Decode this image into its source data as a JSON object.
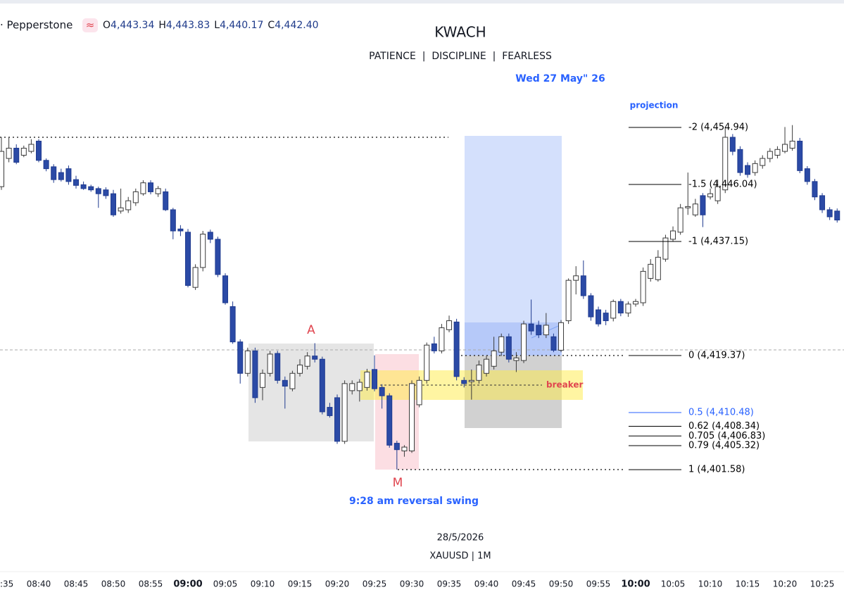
{
  "header": {
    "symbol": "· Pepperstone",
    "badge": "≈",
    "ohlc": [
      {
        "key": "O",
        "value": "4,443.34"
      },
      {
        "key": "H",
        "value": "4,443.83"
      },
      {
        "key": "L",
        "value": "4,440.17"
      },
      {
        "key": "C",
        "value": "4,442.40"
      }
    ]
  },
  "chart_data": {
    "type": "candlestick",
    "title": "KWACH",
    "subtitle": "PATIENCE  |  DISCIPLINE  |  FEARLESS",
    "date_note": "Wed 27 May\" 26",
    "footer": [
      "28/5/2026",
      "XAUUSD | 1M"
    ],
    "annotations": [
      "A",
      "M",
      "9:28 am reversal swing",
      "breaker"
    ],
    "up_color": "#ffffff",
    "down_color": "#2b4aa6",
    "xlim": [
      -0.19,
      112.92
    ],
    "ylim": [
      4385.9,
      4474.8
    ],
    "xticks": [
      {
        "value": 0,
        "label": "08:35"
      },
      {
        "value": 5,
        "label": "08:40"
      },
      {
        "value": 10,
        "label": "08:45"
      },
      {
        "value": 15,
        "label": "08:50"
      },
      {
        "value": 20,
        "label": "08:55"
      },
      {
        "value": 25,
        "label": "09:00",
        "bold": true
      },
      {
        "value": 30,
        "label": "09:05"
      },
      {
        "value": 35,
        "label": "09:10"
      },
      {
        "value": 40,
        "label": "09:15"
      },
      {
        "value": 45,
        "label": "09:20"
      },
      {
        "value": 50,
        "label": "09:25"
      },
      {
        "value": 55,
        "label": "09:30"
      },
      {
        "value": 60,
        "label": "09:35"
      },
      {
        "value": 65,
        "label": "09:40"
      },
      {
        "value": 70,
        "label": "09:45"
      },
      {
        "value": 75,
        "label": "09:50"
      },
      {
        "value": 80,
        "label": "09:55"
      },
      {
        "value": 85,
        "label": "10:00",
        "bold": true
      },
      {
        "value": 90,
        "label": "10:05"
      },
      {
        "value": 95,
        "label": "10:10"
      },
      {
        "value": 100,
        "label": "10:15"
      },
      {
        "value": 105,
        "label": "10:20"
      },
      {
        "value": 110,
        "label": "10:25"
      }
    ],
    "fib": {
      "label": "projection",
      "levels": [
        {
          "value": 4454.94,
          "label": "-2 (4,454.94)",
          "color": "#000000"
        },
        {
          "value": 4446.04,
          "label": "-1.5 (4,446.04)",
          "color": "#000000"
        },
        {
          "value": 4437.15,
          "label": "-1 (4,437.15)",
          "color": "#000000"
        },
        {
          "value": 4419.37,
          "label": "0 (4,419.37)",
          "color": "#000000"
        },
        {
          "value": 4410.48,
          "label": "0.5 (4,410.48)",
          "color": "#2962ff"
        },
        {
          "value": 4408.34,
          "label": "0.62 (4,408.34)",
          "color": "#000000"
        },
        {
          "value": 4406.83,
          "label": "0.705 (4,406.83)",
          "color": "#000000"
        },
        {
          "value": 4405.32,
          "label": "0.79 (4,405.32)",
          "color": "#000000"
        },
        {
          "value": 4401.58,
          "label": "1 (4,401.58)",
          "color": "#000000"
        }
      ]
    },
    "open": [
      4445.7,
      4450.1,
      4451.7,
      4450.6,
      4451.2,
      4452.8,
      4449.8,
      4448.8,
      4447.9,
      4448.5,
      4446.8,
      4446.0,
      4445.7,
      4445.4,
      4445.2,
      4444.6,
      4441.9,
      4442.1,
      4443.2,
      4444.6,
      4446.3,
      4444.6,
      4444.9,
      4442.1,
      4439.1,
      4438.6,
      4430.0,
      4433.1,
      4438.6,
      4437.5,
      4431.8,
      4427.0,
      4421.5,
      4416.6,
      4420.1,
      4414.4,
      4416.6,
      4419.7,
      4415.5,
      4414.2,
      4416.6,
      4417.7,
      4419.3,
      4418.8,
      4411.3,
      4412.8,
      4406.0,
      4413.9,
      4413.9,
      4414.4,
      4417.2,
      4414.4,
      4413.1,
      4405.7,
      4404.5,
      4404.5,
      4411.7,
      4415.5,
      4421.2,
      4420.1,
      4423.4,
      4424.6,
      4415.5,
      4415.3,
      4415.5,
      4416.6,
      4417.7,
      4419.9,
      4422.3,
      4418.6,
      4418.6,
      4424.3,
      4424.1,
      4422.6,
      4422.3,
      4420.2,
      4424.8,
      4431.1,
      4431.8,
      4428.7,
      4426.5,
      4426.0,
      4425.2,
      4427.8,
      4426.0,
      4427.4,
      4427.6,
      4431.4,
      4431.2,
      4434.4,
      4437.5,
      4438.6,
      4442.4,
      4441.3,
      4444.3,
      4444.1,
      4443.5,
      4445.2,
      4453.4,
      4451.5,
      4449.0,
      4447.9,
      4449.0,
      4450.1,
      4450.6,
      4451.2,
      4451.7,
      4452.8,
      4448.5,
      4446.5,
      4444.3,
      4442.1,
      4441.9
    ],
    "high": [
      4453.4,
      4453.4,
      4452.3,
      4452.1,
      4453.1,
      4453.1,
      4450.1,
      4449.2,
      4448.5,
      4449.0,
      4447.4,
      4446.5,
      4446.0,
      4445.7,
      4445.6,
      4445.2,
      4445.4,
      4444.1,
      4445.4,
      4446.7,
      4446.7,
      4445.8,
      4445.4,
      4442.4,
      4439.7,
      4439.1,
      4433.6,
      4438.8,
      4439.0,
      4437.9,
      4432.2,
      4427.8,
      4421.9,
      4420.6,
      4420.6,
      4417.2,
      4420.1,
      4420.1,
      4416.1,
      4417.0,
      4418.8,
      4419.9,
      4421.3,
      4419.2,
      4412.0,
      4413.3,
      4415.5,
      4415.5,
      4415.7,
      4417.3,
      4419.4,
      4414.9,
      4413.5,
      4406.1,
      4405.4,
      4415.5,
      4416.1,
      4421.4,
      4422.3,
      4424.3,
      4425.6,
      4425.1,
      4416.0,
      4417.2,
      4418.6,
      4419.3,
      4422.3,
      4422.8,
      4422.8,
      4419.9,
      4424.8,
      4428.1,
      4424.8,
      4426.0,
      4422.8,
      4424.9,
      4431.4,
      4433.3,
      4434.2,
      4429.1,
      4427.0,
      4426.5,
      4428.1,
      4428.2,
      4427.8,
      4428.2,
      4433.1,
      4434.4,
      4435.8,
      4438.2,
      4439.5,
      4443.0,
      4447.9,
      4443.8,
      4444.7,
      4445.4,
      4446.8,
      4455.0,
      4453.9,
      4452.0,
      4449.5,
      4449.8,
      4450.6,
      4451.7,
      4452.0,
      4455.0,
      4455.3,
      4453.3,
      4448.9,
      4446.9,
      4444.7,
      4442.5,
      4442.3
    ],
    "low": [
      4445.2,
      4449.5,
      4449.2,
      4450.3,
      4450.9,
      4449.5,
      4448.1,
      4446.3,
      4446.5,
      4446.0,
      4445.4,
      4445.2,
      4444.9,
      4442.4,
      4443.8,
      4441.0,
      4441.5,
      4441.6,
      4442.7,
      4444.3,
      4444.5,
      4444.1,
      4441.9,
      4437.5,
      4438.0,
      4430.0,
      4429.6,
      4432.5,
      4436.9,
      4431.6,
      4427.3,
      4421.2,
      4415.0,
      4416.1,
      4412.0,
      4412.4,
      4416.1,
      4415.0,
      4411.1,
      4413.8,
      4416.1,
      4417.2,
      4418.3,
      4410.2,
      4409.7,
      4405.6,
      4405.6,
      4413.3,
      4412.2,
      4413.9,
      4413.8,
      4411.1,
      4405.0,
      4401.6,
      4403.6,
      4404.2,
      4411.3,
      4415.0,
      4419.7,
      4419.7,
      4423.0,
      4415.5,
      4414.4,
      4412.5,
      4415.0,
      4416.1,
      4417.2,
      4419.3,
      4418.3,
      4416.8,
      4418.2,
      4422.6,
      4422.1,
      4422.1,
      4419.9,
      4419.9,
      4424.3,
      4428.9,
      4428.2,
      4424.8,
      4423.9,
      4424.1,
      4424.7,
      4425.5,
      4425.4,
      4427.0,
      4427.1,
      4430.9,
      4430.9,
      4434.0,
      4437.1,
      4438.2,
      4441.3,
      4441.0,
      4439.4,
      4443.7,
      4443.0,
      4444.7,
      4450.6,
      4447.4,
      4447.1,
      4447.4,
      4448.5,
      4449.5,
      4450.1,
      4450.9,
      4451.3,
      4447.8,
      4446.0,
      4443.6,
      4441.6,
      4440.5,
      4440.1
    ],
    "close": [
      4451.2,
      4451.7,
      4449.5,
      4451.7,
      4452.3,
      4449.8,
      4448.5,
      4446.8,
      4446.8,
      4446.5,
      4445.9,
      4445.4,
      4445.2,
      4444.6,
      4444.3,
      4441.3,
      4442.4,
      4443.5,
      4444.9,
      4446.3,
      4444.9,
      4445.4,
      4442.1,
      4438.8,
      4438.8,
      4430.3,
      4433.1,
      4438.3,
      4437.5,
      4432.0,
      4427.6,
      4421.5,
      4416.6,
      4420.1,
      4412.8,
      4416.6,
      4419.6,
      4415.5,
      4414.6,
      4416.6,
      4417.9,
      4419.3,
      4418.8,
      4410.6,
      4410.0,
      4406.0,
      4415.0,
      4415.0,
      4415.2,
      4416.8,
      4414.2,
      4413.1,
      4405.4,
      4404.7,
      4405.1,
      4415.0,
      4415.5,
      4421.0,
      4420.1,
      4423.7,
      4424.8,
      4416.1,
      4415.0,
      4415.5,
      4417.9,
      4418.8,
      4420.1,
      4422.3,
      4418.8,
      4419.0,
      4424.3,
      4423.2,
      4422.6,
      4424.1,
      4420.2,
      4424.5,
      4431.1,
      4431.8,
      4428.7,
      4425.4,
      4424.3,
      4424.8,
      4427.8,
      4426.0,
      4427.4,
      4427.8,
      4432.5,
      4433.6,
      4434.7,
      4437.7,
      4438.8,
      4442.4,
      4442.6,
      4443.0,
      4441.3,
      4444.6,
      4445.7,
      4453.4,
      4451.2,
      4447.9,
      4447.6,
      4449.3,
      4450.1,
      4451.2,
      4451.5,
      4452.3,
      4452.8,
      4448.2,
      4446.5,
      4444.1,
      4442.1,
      4441.0,
      4440.5
    ]
  }
}
